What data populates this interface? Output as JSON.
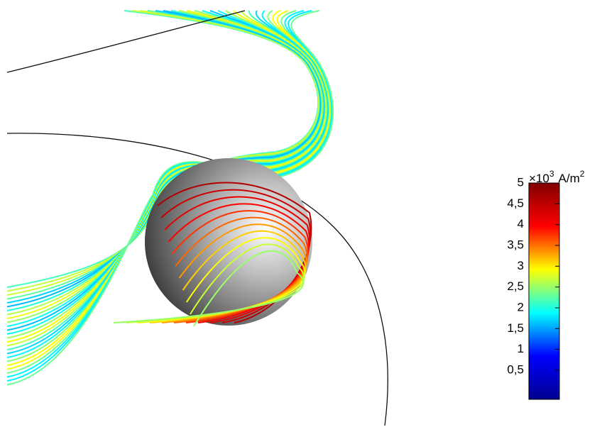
{
  "chart_data": {
    "type": "streamline",
    "colorbar": {
      "scale_label": "×10",
      "scale_exponent": "3",
      "unit": "A/m",
      "unit_exponent": "2",
      "clim": [
        -0.2,
        5
      ],
      "ticks": [
        {
          "value": 0.5,
          "label": "0,5"
        },
        1,
        {
          "value": 1.5,
          "label": "1,5"
        },
        2,
        {
          "value": 2.5,
          "label": "2,5"
        },
        3,
        {
          "value": 3.5,
          "label": "3,5"
        },
        4,
        {
          "value": 4.5,
          "label": "4,5"
        },
        5
      ],
      "colormap": [
        "#00008f",
        "#0000ff",
        "#00ffff",
        "#ffff00",
        "#ff0000",
        "#800000"
      ]
    }
  }
}
